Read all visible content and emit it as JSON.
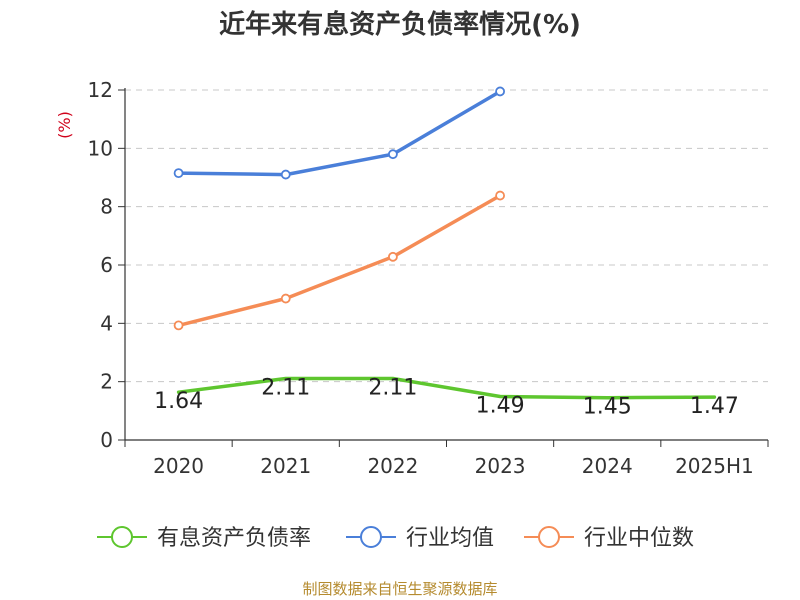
{
  "title": "近年来有息资产负债率情况(%)",
  "source": "制图数据来自恒生聚源数据库",
  "chart_data": {
    "type": "line",
    "title": "近年来有息资产负债率情况(%)",
    "ylabel": "(%)",
    "xlabel": "",
    "categories": [
      "2020",
      "2021",
      "2022",
      "2023",
      "2024",
      "2025H1"
    ],
    "ylim": [
      0,
      12
    ],
    "yticks": [
      0,
      2,
      4,
      6,
      8,
      10,
      12
    ],
    "grid": true,
    "legend_position": "bottom",
    "series": [
      {
        "name": "有息资产负债率",
        "color": "#5ec62f",
        "values": [
          1.64,
          2.11,
          2.11,
          1.49,
          1.45,
          1.47
        ],
        "labels": [
          "1.64",
          "2.11",
          "2.11",
          "1.49",
          "1.45",
          "1.47"
        ]
      },
      {
        "name": "行业均值",
        "color": "#4a7fd9",
        "values": [
          9.15,
          9.1,
          9.8,
          11.95,
          null,
          null
        ]
      },
      {
        "name": "行业中位数",
        "color": "#f58c56",
        "values": [
          3.93,
          4.85,
          6.28,
          8.38,
          null,
          null
        ]
      }
    ]
  }
}
